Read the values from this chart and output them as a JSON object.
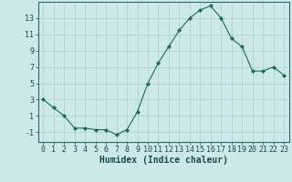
{
  "x": [
    0,
    1,
    2,
    3,
    4,
    5,
    6,
    7,
    8,
    9,
    10,
    11,
    12,
    13,
    14,
    15,
    16,
    17,
    18,
    19,
    20,
    21,
    22,
    23
  ],
  "y": [
    3,
    2,
    1,
    -0.5,
    -0.5,
    -0.7,
    -0.7,
    -1.3,
    -0.7,
    1.5,
    5,
    7.5,
    9.5,
    11.5,
    13,
    14,
    14.5,
    13,
    10.5,
    9.5,
    6.5,
    6.5,
    7,
    6
  ],
  "line_color": "#1a6b5a",
  "marker": "D",
  "marker_size": 2,
  "bg_color": "#cce8e8",
  "grid_color": "#aacfcf",
  "xlabel": "Humidex (Indice chaleur)",
  "xlabel_fontsize": 7,
  "xlim": [
    -0.5,
    23.5
  ],
  "ylim": [
    -2.2,
    15.0
  ],
  "yticks": [
    -1,
    1,
    3,
    5,
    7,
    9,
    11,
    13
  ],
  "xticks": [
    0,
    1,
    2,
    3,
    4,
    5,
    6,
    7,
    8,
    9,
    10,
    11,
    12,
    13,
    14,
    15,
    16,
    17,
    18,
    19,
    20,
    21,
    22,
    23
  ],
  "tick_fontsize": 6,
  "spine_color": "#336666",
  "linewidth": 0.8
}
